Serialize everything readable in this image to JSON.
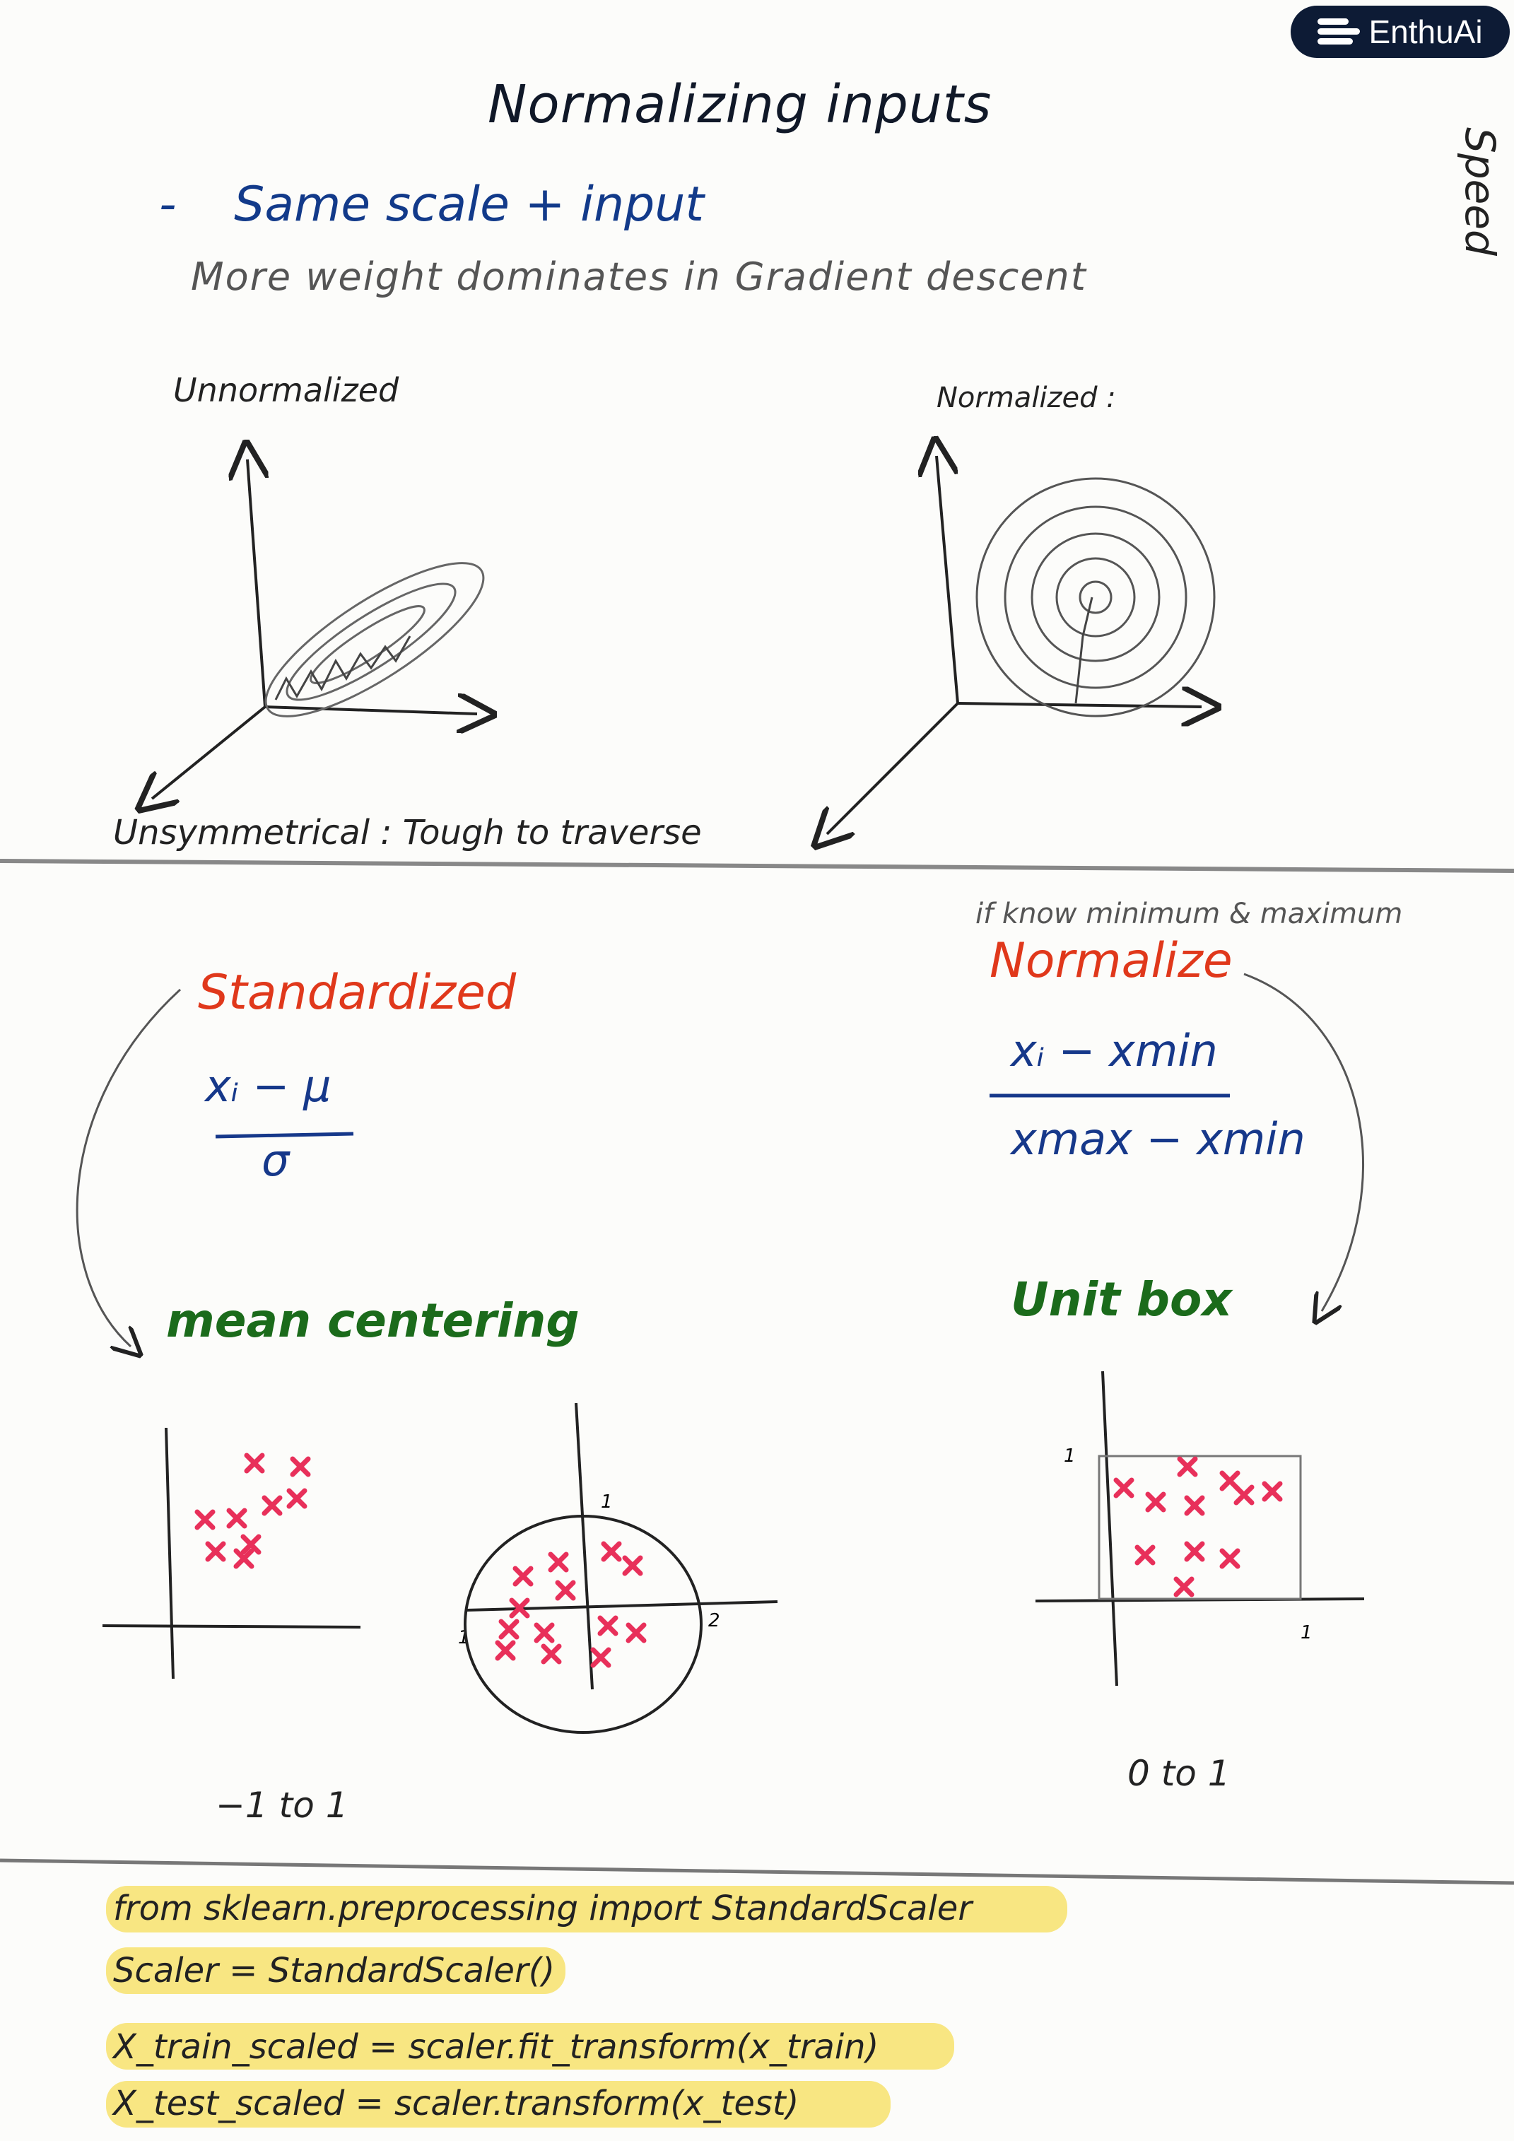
{
  "brand": {
    "name": "EnthuAi",
    "icon": "enthuai-logo-icon"
  },
  "title": "Normalizing inputs",
  "side_label": "Speed",
  "bullet": {
    "dash": "-",
    "text": "Same scale + input"
  },
  "subtext": "More weight dominates in Gradient descent",
  "plots": {
    "left_label": "Unnormalized",
    "right_label": "Normalized :",
    "caption": "Unsymmetrical : Tough to traverse"
  },
  "standardized": {
    "heading": "Standardized",
    "numerator": "xᵢ − μ",
    "denominator": "σ"
  },
  "normalize": {
    "note": "if know minimum & maximum",
    "heading": "Normalize",
    "numerator": "xᵢ − xmin",
    "denominator": "xmax − xmin"
  },
  "mean_centering": {
    "heading": "mean centering",
    "range": "−1 to 1",
    "ticks": [
      "1",
      "1",
      "2"
    ]
  },
  "unit_box": {
    "heading": "Unit box",
    "range": "0 to 1",
    "ticks": [
      "1",
      "1"
    ]
  },
  "code": [
    "from sklearn.preprocessing import StandardScaler",
    "Scaler = StandardScaler()",
    "X_train_scaled = scaler.fit_transform(x_train)",
    "X_test_scaled = scaler.transform(x_test)"
  ],
  "colors": {
    "title": "#101828",
    "blue": "#16388a",
    "red": "#e0381b",
    "green": "#1b6b1b",
    "marker": "#e8305a",
    "highlight": "#f7df5a"
  }
}
